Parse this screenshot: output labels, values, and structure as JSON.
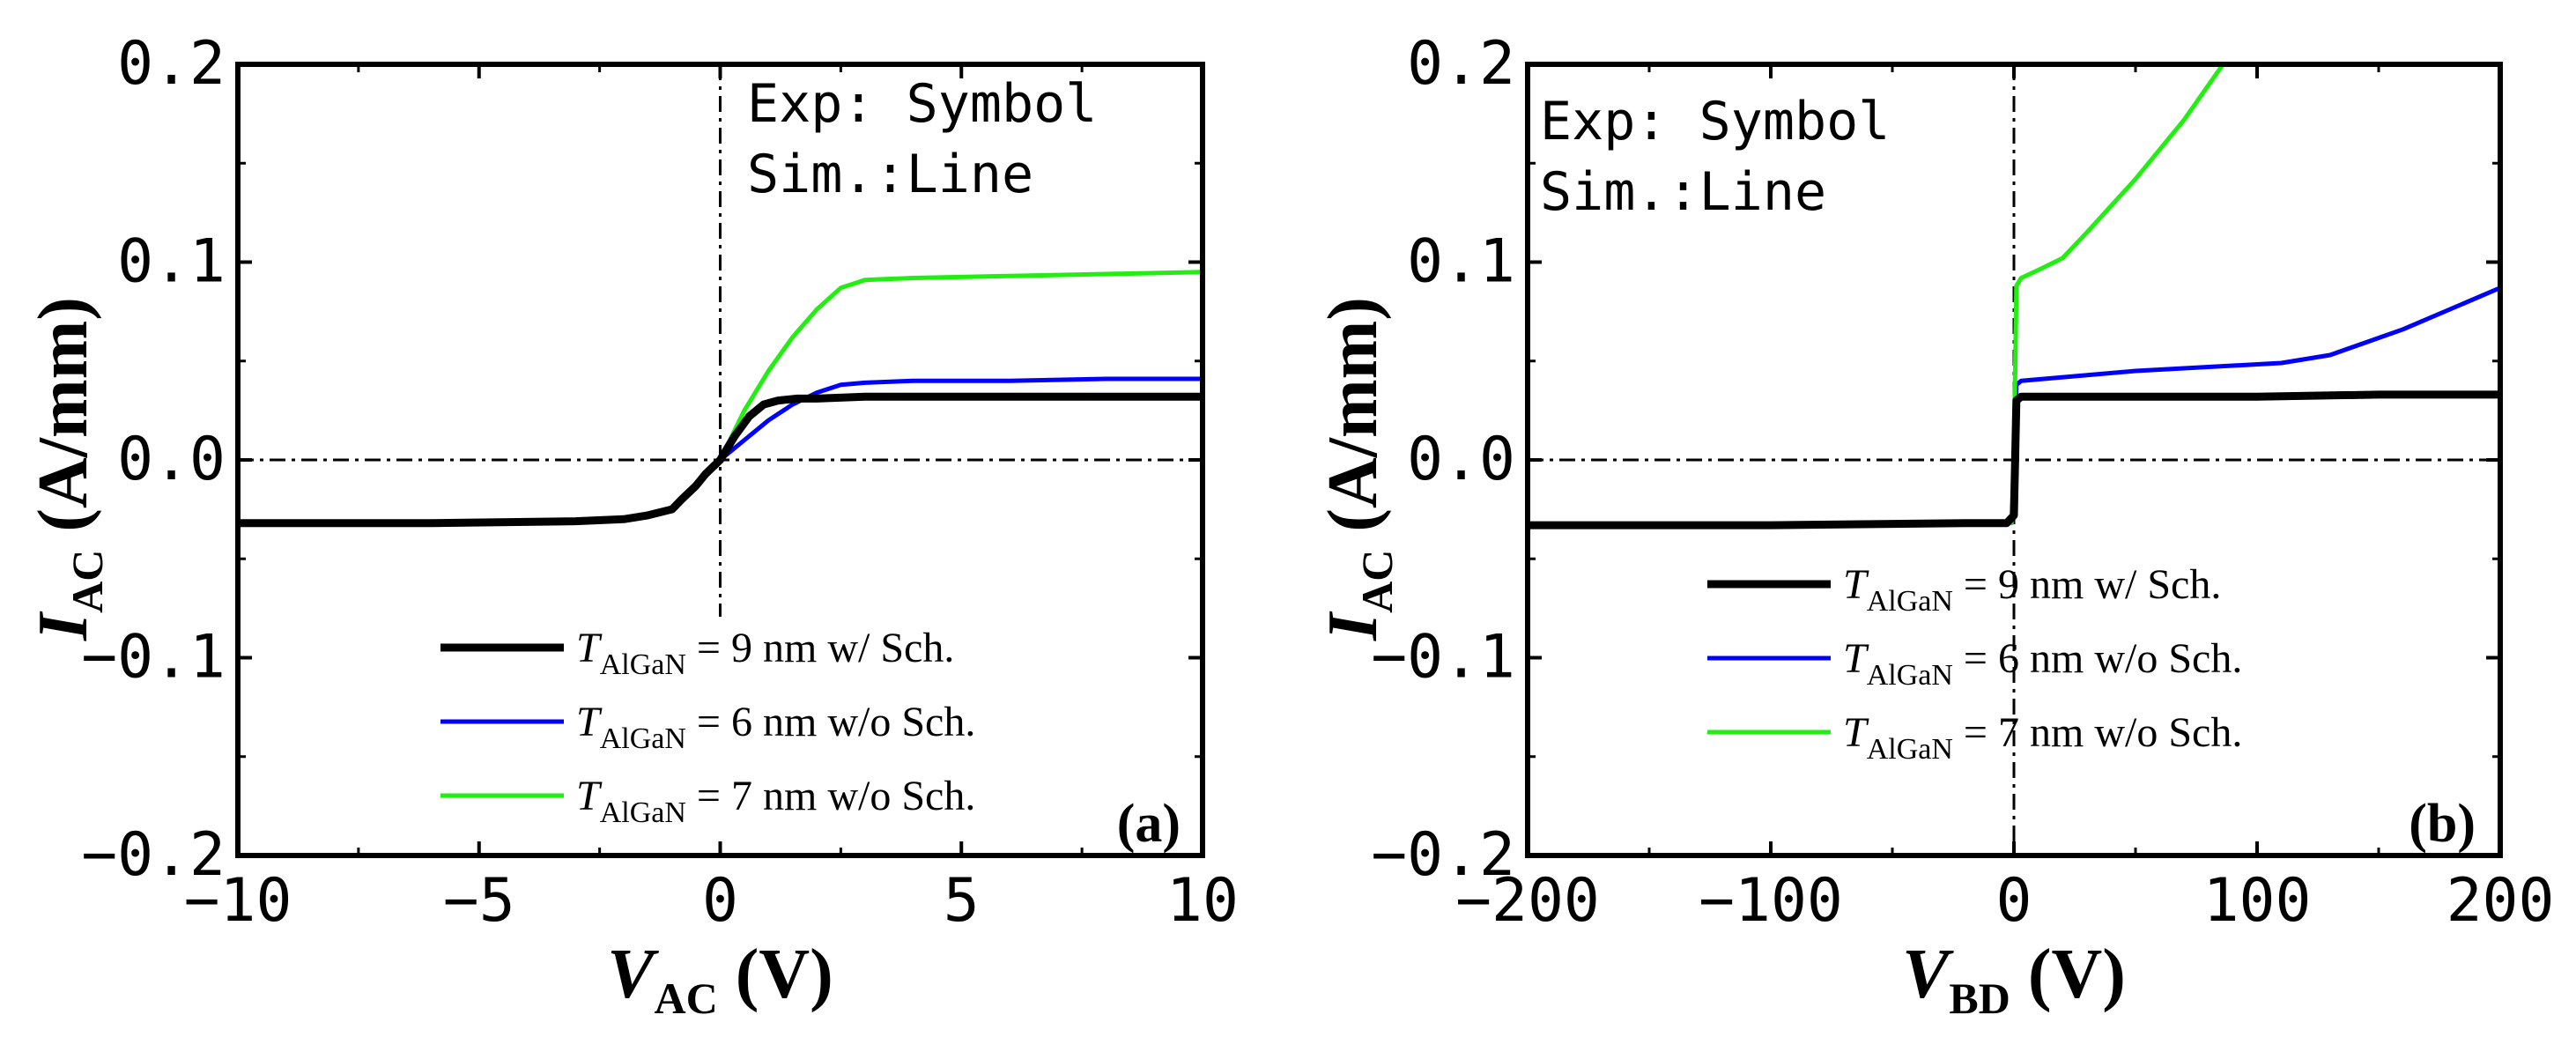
{
  "chart_data": [
    {
      "type": "line",
      "panel_label": "(a)",
      "xlabel": {
        "main": "V",
        "sub": "AC",
        "unit": " (V)"
      },
      "ylabel": {
        "main": "I",
        "sub": "AC",
        "unit": " (A/mm)"
      },
      "xlim": [
        -10,
        10
      ],
      "ylim": [
        -0.2,
        0.2
      ],
      "xticks": [
        -10,
        -5,
        0,
        5,
        10
      ],
      "xtick_labels": [
        "−10",
        "−5",
        "0",
        "5",
        "10"
      ],
      "yticks": [
        -0.2,
        -0.1,
        0.0,
        0.1,
        0.2
      ],
      "ytick_labels": [
        "−0.2",
        "−0.1",
        "0.0",
        "0.1",
        "0.2"
      ],
      "annotation_lines": [
        "Exp: Symbol",
        "Sim.:Line"
      ],
      "legend_position": "bottom-center",
      "reference_lines": {
        "x0": 0,
        "y0": 0
      },
      "series": [
        {
          "name": "T_AlGaN = 9 nm w/ Sch.",
          "legend": {
            "main": "T",
            "sub": "AlGaN",
            "rest": " = 9 nm w/ Sch."
          },
          "color": "#000000",
          "width": 9,
          "x": [
            -10,
            -6,
            -3,
            -2,
            -1.5,
            -1.0,
            -0.8,
            -0.5,
            -0.3,
            0,
            0.3,
            0.6,
            0.9,
            1.2,
            1.6,
            2.0,
            3,
            5,
            10
          ],
          "y": [
            -0.032,
            -0.032,
            -0.031,
            -0.03,
            -0.028,
            -0.025,
            -0.02,
            -0.013,
            -0.007,
            0.0,
            0.012,
            0.022,
            0.028,
            0.03,
            0.031,
            0.031,
            0.032,
            0.032,
            0.032
          ]
        },
        {
          "name": "T_AlGaN = 6 nm w/o Sch.",
          "legend": {
            "main": "T",
            "sub": "AlGaN",
            "rest": " = 6 nm w/o Sch."
          },
          "color": "#0000ff",
          "width": 5,
          "x": [
            0,
            0.5,
            1.0,
            1.5,
            2.0,
            2.5,
            3.0,
            4,
            6,
            8,
            10
          ],
          "y": [
            0.0,
            0.01,
            0.02,
            0.028,
            0.034,
            0.038,
            0.039,
            0.04,
            0.04,
            0.041,
            0.041
          ]
        },
        {
          "name": "T_AlGaN = 7 nm w/o Sch.",
          "legend": {
            "main": "T",
            "sub": "AlGaN",
            "rest": " = 7 nm w/o Sch."
          },
          "color": "#22ee11",
          "width": 5,
          "x": [
            0,
            0.5,
            1.0,
            1.5,
            2.0,
            2.5,
            3.0,
            4,
            6,
            8,
            10
          ],
          "y": [
            0.0,
            0.025,
            0.045,
            0.062,
            0.076,
            0.087,
            0.091,
            0.092,
            0.093,
            0.094,
            0.095
          ]
        }
      ]
    },
    {
      "type": "line",
      "panel_label": "(b)",
      "xlabel": {
        "main": "V",
        "sub": "BD",
        "unit": " (V)"
      },
      "ylabel": {
        "main": "I",
        "sub": "AC",
        "unit": " (A/mm)"
      },
      "xlim": [
        -200,
        200
      ],
      "ylim": [
        -0.2,
        0.2
      ],
      "xticks": [
        -200,
        -100,
        0,
        100,
        200
      ],
      "xtick_labels": [
        "−200",
        "−100",
        "0",
        "100",
        "200"
      ],
      "yticks": [
        -0.2,
        -0.1,
        0.0,
        0.1,
        0.2
      ],
      "ytick_labels": [
        "−0.2",
        "−0.1",
        "0.0",
        "0.1",
        "0.2"
      ],
      "annotation_lines": [
        "Exp: Symbol",
        "Sim.:Line"
      ],
      "legend_position": "bottom-center",
      "reference_lines": {
        "x0": 0,
        "y0": 0
      },
      "series": [
        {
          "name": "T_AlGaN = 9 nm w/ Sch.",
          "legend": {
            "main": "T",
            "sub": "AlGaN",
            "rest": " = 9 nm w/ Sch."
          },
          "color": "#000000",
          "width": 9,
          "x": [
            -200,
            -100,
            -20,
            -3,
            0,
            1,
            3,
            50,
            100,
            150,
            200
          ],
          "y": [
            -0.033,
            -0.033,
            -0.032,
            -0.032,
            -0.028,
            0.03,
            0.032,
            0.032,
            0.032,
            0.033,
            0.033
          ]
        },
        {
          "name": "T_AlGaN = 6 nm w/o Sch.",
          "legend": {
            "main": "T",
            "sub": "AlGaN",
            "rest": " = 6 nm w/o Sch."
          },
          "color": "#0000ff",
          "width": 5,
          "x": [
            0,
            1,
            3,
            50,
            110,
            130,
            160,
            200
          ],
          "y": [
            0.0,
            0.038,
            0.04,
            0.045,
            0.049,
            0.053,
            0.066,
            0.087
          ]
        },
        {
          "name": "T_AlGaN = 7 nm w/o Sch.",
          "legend": {
            "main": "T",
            "sub": "AlGaN",
            "rest": " = 7 nm w/o Sch."
          },
          "color": "#22ee11",
          "width": 5,
          "x": [
            -1,
            0,
            1,
            3,
            10,
            20,
            30,
            50,
            70,
            86
          ],
          "y": [
            -0.032,
            0.0,
            0.088,
            0.092,
            0.096,
            0.102,
            0.115,
            0.142,
            0.172,
            0.2
          ]
        }
      ]
    }
  ]
}
